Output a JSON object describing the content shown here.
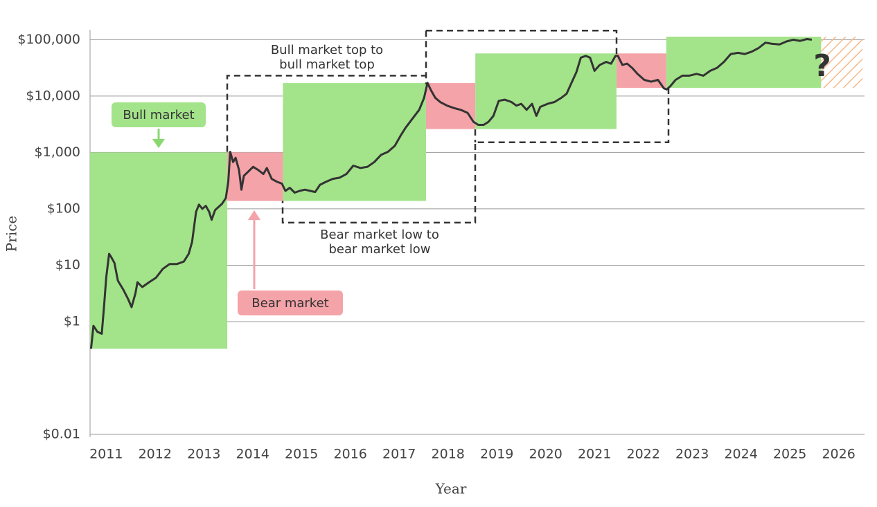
{
  "chart_data": {
    "type": "line",
    "x_label": "Year",
    "y_label": "Price",
    "log_scale": true,
    "grid": true,
    "color": "#333333",
    "xlim": [
      2010.67,
      2026.53
    ],
    "xticks": [
      2011,
      2012,
      2013,
      2014,
      2015,
      2016,
      2017,
      2018,
      2019,
      2020,
      2021,
      2022,
      2023,
      2024,
      2025,
      2026
    ],
    "ylim": [
      0.01,
      150000
    ],
    "yticks": [
      {
        "value": 0.01,
        "label": "$0.01"
      },
      {
        "value": 1,
        "label": "$1"
      },
      {
        "value": 10,
        "label": "$10"
      },
      {
        "value": 100,
        "label": "$100"
      },
      {
        "value": 1000,
        "label": "$1,000"
      },
      {
        "value": 10000,
        "label": "$10,000"
      },
      {
        "value": 100000,
        "label": "$100,000"
      }
    ],
    "x": [
      2010.69,
      2010.74,
      2010.82,
      2010.91,
      2010.96,
      2011.0,
      2011.06,
      2011.1,
      2011.17,
      2011.24,
      2011.35,
      2011.45,
      2011.52,
      2011.6,
      2011.64,
      2011.74,
      2011.88,
      2012.02,
      2012.16,
      2012.3,
      2012.45,
      2012.59,
      2012.69,
      2012.76,
      2012.84,
      2012.9,
      2012.97,
      2013.04,
      2013.11,
      2013.16,
      2013.23,
      2013.37,
      2013.45,
      2013.5,
      2013.54,
      2013.6,
      2013.65,
      2013.72,
      2013.77,
      2013.82,
      2013.91,
      2014.01,
      2014.11,
      2014.22,
      2014.29,
      2014.39,
      2014.5,
      2014.6,
      2014.67,
      2014.76,
      2014.86,
      2014.96,
      2015.07,
      2015.18,
      2015.28,
      2015.38,
      2015.5,
      2015.64,
      2015.78,
      2015.92,
      2016.06,
      2016.21,
      2016.35,
      2016.49,
      2016.63,
      2016.77,
      2016.91,
      2017.03,
      2017.13,
      2017.27,
      2017.41,
      2017.51,
      2017.58,
      2017.65,
      2017.74,
      2017.84,
      2017.98,
      2018.12,
      2018.26,
      2018.4,
      2018.52,
      2018.62,
      2018.73,
      2018.83,
      2018.93,
      2019.04,
      2019.16,
      2019.3,
      2019.4,
      2019.5,
      2019.61,
      2019.72,
      2019.81,
      2019.89,
      2020.04,
      2020.18,
      2020.32,
      2020.43,
      2020.53,
      2020.63,
      2020.72,
      2020.82,
      2020.91,
      2021.0,
      2021.11,
      2021.24,
      2021.34,
      2021.43,
      2021.48,
      2021.57,
      2021.67,
      2021.77,
      2021.88,
      2022.02,
      2022.16,
      2022.3,
      2022.42,
      2022.48,
      2022.56,
      2022.66,
      2022.8,
      2022.94,
      2023.09,
      2023.23,
      2023.37,
      2023.51,
      2023.65,
      2023.79,
      2023.94,
      2024.08,
      2024.22,
      2024.36,
      2024.5,
      2024.64,
      2024.79,
      2024.93,
      2025.07,
      2025.21,
      2025.35,
      2025.45
    ],
    "values": [
      0.33,
      0.84,
      0.66,
      0.61,
      2.0,
      6.0,
      15.9,
      14.1,
      11.0,
      5.3,
      3.7,
      2.5,
      1.8,
      3.2,
      5.0,
      4.1,
      5.0,
      6.0,
      8.6,
      10.5,
      10.5,
      11.6,
      15.9,
      26,
      88,
      119,
      100,
      113,
      88,
      64,
      95,
      122,
      155,
      301,
      1025,
      676,
      802,
      491,
      219,
      385,
      457,
      556,
      491,
      414,
      529,
      340,
      301,
      280,
      208,
      236,
      194,
      208,
      219,
      208,
      199,
      267,
      301,
      340,
      357,
      414,
      583,
      529,
      556,
      676,
      906,
      1025,
      1309,
      1987,
      2731,
      3945,
      5690,
      9290,
      17140,
      12770,
      9290,
      7830,
      6760,
      6130,
      5690,
      5040,
      3490,
      3090,
      3090,
      3490,
      4460,
      8220,
      8630,
      7830,
      6760,
      7280,
      5690,
      7280,
      4460,
      6440,
      7280,
      7830,
      9290,
      11040,
      17140,
      26660,
      47970,
      51640,
      47970,
      27980,
      35730,
      40340,
      37510,
      51640,
      51640,
      35730,
      37510,
      31620,
      24760,
      19370,
      17990,
      19370,
      13740,
      13090,
      15180,
      19370,
      23010,
      23010,
      24760,
      23010,
      27980,
      31620,
      40340,
      55590,
      58340,
      55590,
      61240,
      70960,
      88510,
      84330,
      82220,
      92890,
      100000,
      95290,
      102560,
      100000
    ],
    "regions": [
      {
        "x": [
          2010.67,
          2013.48
        ],
        "y": [
          0.33,
          1000
        ],
        "color": "#a3e38a"
      },
      {
        "x": [
          2013.48,
          2014.62
        ],
        "y": [
          138,
          1000
        ],
        "color": "#f4a3a8"
      },
      {
        "x": [
          2014.62,
          2017.55
        ],
        "y": [
          138,
          17000
        ],
        "color": "#a3e38a"
      },
      {
        "x": [
          2017.55,
          2018.56
        ],
        "y": [
          2600,
          17000
        ],
        "color": "#f4a3a8"
      },
      {
        "x": [
          2018.56,
          2021.45
        ],
        "y": [
          2600,
          57000
        ],
        "color": "#a3e38a"
      },
      {
        "x": [
          2021.45,
          2022.47
        ],
        "y": [
          14000,
          57000
        ],
        "color": "#f4a3a8"
      },
      {
        "x": [
          2022.47,
          2025.64
        ],
        "y": [
          14000,
          113000
        ],
        "color": "#a3e38a"
      },
      {
        "x": [
          2025.64,
          2026.49
        ],
        "y": [
          14000,
          113000
        ],
        "color": "#f5b98a",
        "hatched": true
      }
    ],
    "annotations": {
      "bull_market": "Bull market",
      "bear_market": "Bear market",
      "top_to_top": [
        "Bull market top to",
        "bull market top"
      ],
      "low_to_low": [
        "Bear market low to",
        "bear market low"
      ],
      "unknown": "?"
    }
  }
}
